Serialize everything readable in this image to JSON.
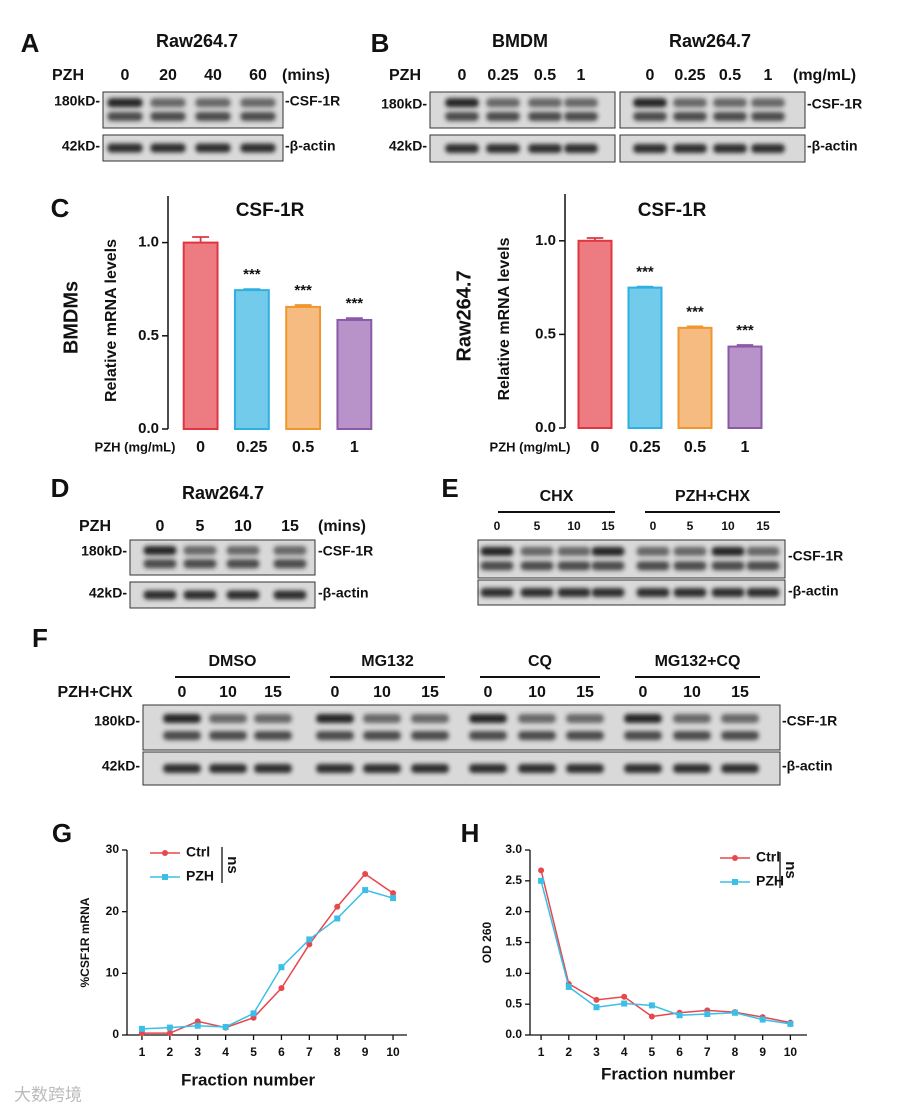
{
  "blots": [
    {
      "letter": "A",
      "titles": [
        "Raw264.7"
      ],
      "row_label": "PZH",
      "lanes": [
        "0",
        "20",
        "40",
        "60"
      ],
      "unit": "(mins)",
      "markers": [
        "180kD-",
        "42kD-"
      ],
      "proteins": [
        "-CSF-1R",
        "-β-actin"
      ]
    },
    {
      "letter": "B",
      "titles": [
        "BMDM",
        "Raw264.7"
      ],
      "row_label": "PZH",
      "lanes": [
        "0",
        "0.25",
        "0.5",
        "1",
        "0",
        "0.25",
        "0.5",
        "1"
      ],
      "unit": "(mg/mL)",
      "markers": [
        "180kD-",
        "42kD-"
      ],
      "proteins": [
        "-CSF-1R",
        "-β-actin"
      ]
    },
    {
      "letter": "D",
      "titles": [
        "Raw264.7"
      ],
      "row_label": "PZH",
      "lanes": [
        "0",
        "5",
        "10",
        "15"
      ],
      "unit": "(mins)",
      "markers": [
        "180kD-",
        "42kD-"
      ],
      "proteins": [
        "-CSF-1R",
        "-β-actin"
      ]
    },
    {
      "letter": "E",
      "groups": [
        "CHX",
        "PZH+CHX"
      ],
      "lanes": [
        "0",
        "5",
        "10",
        "15",
        "0",
        "5",
        "10",
        "15"
      ],
      "proteins": [
        "-CSF-1R",
        "-β-actin"
      ]
    },
    {
      "letter": "F",
      "groups": [
        "DMSO",
        "MG132",
        "CQ",
        "MG132+CQ"
      ],
      "row_label": "PZH+CHX",
      "lanes": [
        "0",
        "10",
        "15",
        "0",
        "10",
        "15",
        "0",
        "10",
        "15",
        "0",
        "10",
        "15"
      ],
      "markers": [
        "180kD-",
        "42kD-"
      ],
      "proteins": [
        "-CSF-1R",
        "-β-actin"
      ]
    }
  ],
  "chart_data": [
    {
      "type": "bar",
      "panel": "C",
      "title": "CSF-1R",
      "side_label": "BMDMs",
      "ylabel": "Relative mRNA levels",
      "xlabel": "PZH (mg/mL)",
      "categories": [
        "0",
        "0.25",
        "0.5",
        "1"
      ],
      "values": [
        1.0,
        0.745,
        0.655,
        0.585
      ],
      "errors": [
        0.03,
        0.005,
        0.01,
        0.01
      ],
      "significance": [
        null,
        "***",
        "***",
        "***"
      ],
      "colors": [
        "#ec7b82",
        "#73cbec",
        "#f6bb80",
        "#b893c9"
      ],
      "edge_colors": [
        "#e0363f",
        "#2eb0e0",
        "#f0962e",
        "#8a5aa6"
      ],
      "ylim": [
        0,
        1.25
      ],
      "yticks": [
        {
          "value": 0,
          "label": "0.0"
        },
        0.5,
        {
          "value": 1,
          "label": "1.0"
        }
      ]
    },
    {
      "type": "bar",
      "title": "CSF-1R",
      "side_label": "Raw264.7",
      "ylabel": "Relative mRNA levels",
      "xlabel": "PZH (mg/mL)",
      "categories": [
        "0",
        "0.25",
        "0.5",
        "1"
      ],
      "values": [
        1.0,
        0.75,
        0.535,
        0.435
      ],
      "errors": [
        0.015,
        0.005,
        0.008,
        0.008
      ],
      "significance": [
        null,
        "***",
        "***",
        "***"
      ],
      "colors": [
        "#ec7b82",
        "#73cbec",
        "#f6bb80",
        "#b893c9"
      ],
      "edge_colors": [
        "#e0363f",
        "#2eb0e0",
        "#f0962e",
        "#8a5aa6"
      ],
      "ylim": [
        0,
        1.25
      ],
      "yticks": [
        {
          "value": 0,
          "label": "0.0"
        },
        0.5,
        {
          "value": 1,
          "label": "1.0"
        }
      ]
    },
    {
      "type": "line",
      "panel": "G",
      "ylabel": "%CSF1R mRNA",
      "xlabel": "Fraction number",
      "annotation": "ns",
      "x": [
        1,
        2,
        3,
        4,
        5,
        6,
        7,
        8,
        9,
        10
      ],
      "series": [
        {
          "name": "Ctrl",
          "color": "#e8474c",
          "marker": "circle",
          "values": [
            0.3,
            0.3,
            2.2,
            1.2,
            2.8,
            7.6,
            14.7,
            20.8,
            26.1,
            23.0
          ]
        },
        {
          "name": "PZH",
          "color": "#3cbfe6",
          "marker": "square",
          "values": [
            1.0,
            1.2,
            1.5,
            1.3,
            3.5,
            11.0,
            15.5,
            18.9,
            23.5,
            22.2
          ]
        }
      ],
      "xlim": [
        0.5,
        10.5
      ],
      "xticks": [
        1,
        2,
        3,
        4,
        5,
        6,
        7,
        8,
        9,
        10
      ],
      "ylim": [
        0,
        30
      ],
      "yticks": [
        0,
        10,
        20,
        30
      ]
    },
    {
      "type": "line",
      "panel": "H",
      "ylabel": "OD 260",
      "xlabel": "Fraction number",
      "annotation": "ns",
      "x": [
        1,
        2,
        3,
        4,
        5,
        6,
        7,
        8,
        9,
        10
      ],
      "series": [
        {
          "name": "Ctrl",
          "color": "#e8474c",
          "marker": "circle",
          "values": [
            2.67,
            0.83,
            0.57,
            0.62,
            0.3,
            0.36,
            0.4,
            0.37,
            0.29,
            0.2
          ]
        },
        {
          "name": "PZH",
          "color": "#3cbfe6",
          "marker": "square",
          "values": [
            2.5,
            0.78,
            0.45,
            0.51,
            0.48,
            0.32,
            0.34,
            0.36,
            0.25,
            0.18
          ]
        }
      ],
      "xlim": [
        0.6,
        10.6
      ],
      "xticks": [
        1,
        2,
        3,
        4,
        5,
        6,
        7,
        8,
        9,
        10
      ],
      "ylim": [
        0,
        3.0
      ],
      "yticks": [
        {
          "value": 0,
          "label": "0.0"
        },
        0.5,
        {
          "value": 1,
          "label": "1.0"
        },
        1.5,
        {
          "value": 2,
          "label": "2.0"
        },
        2.5,
        {
          "value": 3,
          "label": "3.0"
        }
      ]
    }
  ],
  "watermark": "大数跨境"
}
